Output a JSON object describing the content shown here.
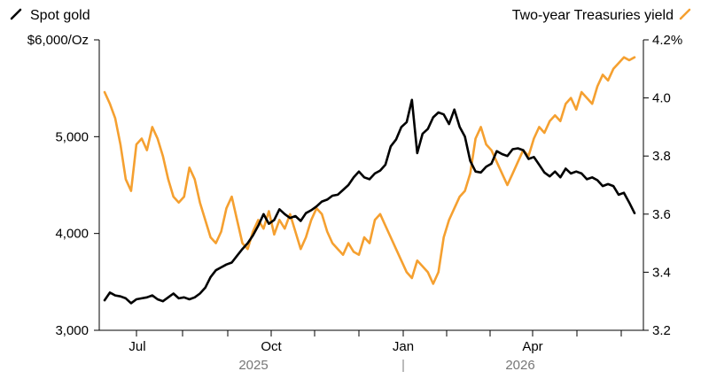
{
  "chart_data": {
    "type": "line",
    "legend": {
      "left": "Spot gold",
      "right": "Two-year Treasuries yield"
    },
    "axes": {
      "left": {
        "unit_label": "$6,000/Oz",
        "ticks": [
          3000,
          4000,
          5000,
          6000
        ],
        "tick_labels": [
          "3,000",
          "4,000",
          "5,000",
          "$6,000/Oz"
        ],
        "range": [
          3000,
          6000
        ]
      },
      "right": {
        "ticks": [
          3.2,
          3.4,
          3.6,
          3.8,
          4.0,
          4.2
        ],
        "tick_labels": [
          "3.2",
          "3.4",
          "3.6",
          "3.8",
          "4.0",
          "4.2%"
        ],
        "range": [
          3.2,
          4.2
        ]
      },
      "x": {
        "month_labels": [
          "Jul",
          "Oct",
          "Jan",
          "Apr"
        ],
        "year_labels": [
          "2025",
          "2026"
        ],
        "range_index": [
          0,
          100
        ]
      }
    },
    "colors": {
      "gold": "#000000",
      "yield": "#f5a030",
      "axis": "#000000",
      "year": "#777777"
    },
    "series": [
      {
        "name": "Spot gold",
        "axis": "left",
        "x": [
          0,
          1,
          2,
          3,
          4,
          5,
          6,
          7,
          8,
          9,
          10,
          11,
          12,
          13,
          14,
          15,
          16,
          17,
          18,
          19,
          20,
          21,
          22,
          23,
          24,
          25,
          26,
          27,
          28,
          29,
          30,
          31,
          32,
          33,
          34,
          35,
          36,
          37,
          38,
          39,
          40,
          41,
          42,
          43,
          44,
          45,
          46,
          47,
          48,
          49,
          50,
          51,
          52,
          53,
          54,
          55,
          56,
          57,
          58,
          59,
          60,
          61,
          62,
          63,
          64,
          65,
          66,
          67,
          68,
          69,
          70,
          71,
          72,
          73,
          74,
          75,
          76,
          77,
          78,
          79,
          80,
          81,
          82,
          83,
          84,
          85,
          86,
          87,
          88,
          89,
          90,
          91,
          92,
          93,
          94,
          95,
          96,
          97,
          98,
          99,
          100
        ],
        "values": [
          3310,
          3390,
          3360,
          3350,
          3330,
          3280,
          3320,
          3330,
          3340,
          3360,
          3320,
          3300,
          3340,
          3380,
          3330,
          3340,
          3320,
          3340,
          3380,
          3440,
          3550,
          3620,
          3650,
          3680,
          3700,
          3770,
          3840,
          3900,
          3980,
          4080,
          4200,
          4100,
          4140,
          4250,
          4200,
          4160,
          4180,
          4130,
          4210,
          4240,
          4280,
          4330,
          4350,
          4390,
          4400,
          4450,
          4500,
          4580,
          4640,
          4580,
          4560,
          4620,
          4650,
          4710,
          4900,
          4970,
          5100,
          5150,
          5380,
          4830,
          5030,
          5080,
          5200,
          5250,
          5230,
          5130,
          5280,
          5100,
          5000,
          4750,
          4640,
          4630,
          4690,
          4720,
          4850,
          4820,
          4800,
          4870,
          4880,
          4860,
          4770,
          4790,
          4710,
          4630,
          4590,
          4640,
          4580,
          4670,
          4620,
          4640,
          4620,
          4560,
          4580,
          4550,
          4490,
          4510,
          4490,
          4400,
          4420,
          4320,
          4210
        ]
      },
      {
        "name": "Two-year Treasuries yield",
        "axis": "right",
        "x": [
          0,
          1,
          2,
          3,
          4,
          5,
          6,
          7,
          8,
          9,
          10,
          11,
          12,
          13,
          14,
          15,
          16,
          17,
          18,
          19,
          20,
          21,
          22,
          23,
          24,
          25,
          26,
          27,
          28,
          29,
          30,
          31,
          32,
          33,
          34,
          35,
          36,
          37,
          38,
          39,
          40,
          41,
          42,
          43,
          44,
          45,
          46,
          47,
          48,
          49,
          50,
          51,
          52,
          53,
          54,
          55,
          56,
          57,
          58,
          59,
          60,
          61,
          62,
          63,
          64,
          65,
          66,
          67,
          68,
          69,
          70,
          71,
          72,
          73,
          74,
          75,
          76,
          77,
          78,
          79,
          80,
          81,
          82,
          83,
          84,
          85,
          86,
          87,
          88,
          89,
          90,
          91,
          92,
          93,
          94,
          95,
          96,
          97,
          98,
          99,
          100
        ],
        "values": [
          4.02,
          3.98,
          3.93,
          3.84,
          3.72,
          3.68,
          3.84,
          3.86,
          3.82,
          3.9,
          3.86,
          3.8,
          3.72,
          3.66,
          3.64,
          3.66,
          3.76,
          3.72,
          3.64,
          3.58,
          3.52,
          3.5,
          3.54,
          3.62,
          3.66,
          3.58,
          3.5,
          3.48,
          3.54,
          3.58,
          3.55,
          3.61,
          3.53,
          3.58,
          3.55,
          3.6,
          3.54,
          3.48,
          3.52,
          3.58,
          3.62,
          3.6,
          3.54,
          3.5,
          3.48,
          3.46,
          3.5,
          3.47,
          3.46,
          3.52,
          3.5,
          3.58,
          3.6,
          3.56,
          3.52,
          3.48,
          3.44,
          3.4,
          3.38,
          3.44,
          3.42,
          3.4,
          3.36,
          3.4,
          3.52,
          3.58,
          3.62,
          3.66,
          3.68,
          3.74,
          3.86,
          3.9,
          3.84,
          3.82,
          3.78,
          3.74,
          3.7,
          3.74,
          3.78,
          3.82,
          3.8,
          3.86,
          3.9,
          3.88,
          3.92,
          3.94,
          3.92,
          3.98,
          4.0,
          3.96,
          4.02,
          4.0,
          3.98,
          4.04,
          4.08,
          4.06,
          4.1,
          4.12,
          4.14,
          4.13,
          4.14
        ]
      }
    ]
  }
}
